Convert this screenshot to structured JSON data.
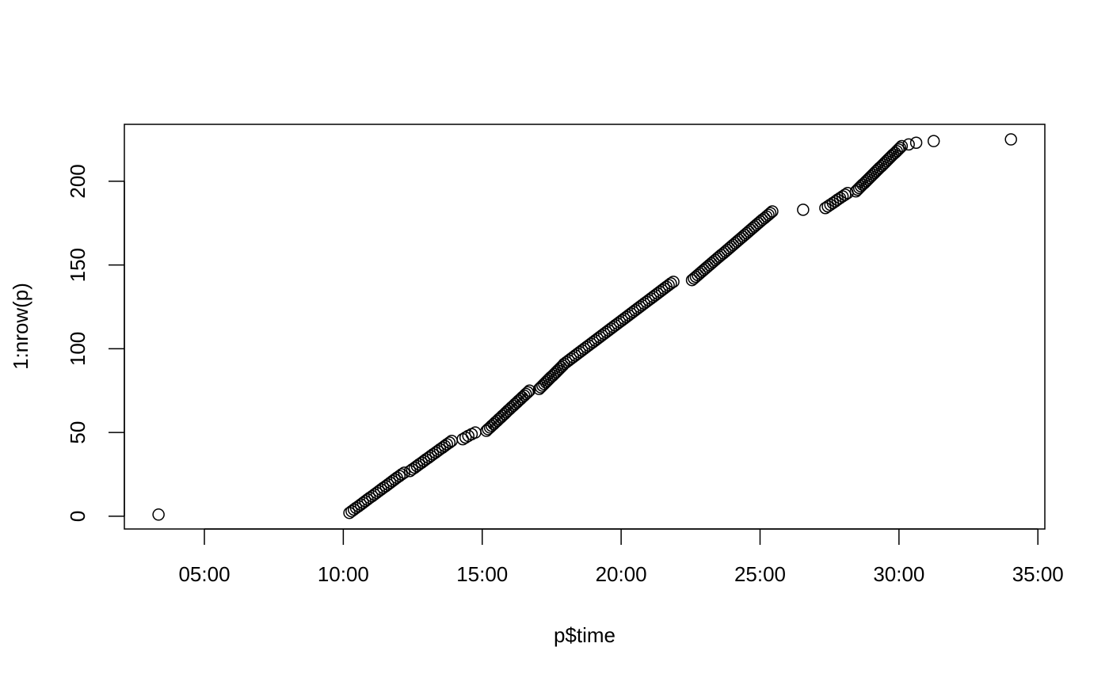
{
  "chart_data": {
    "type": "scatter",
    "x_label": "p$time",
    "y_label": "1:nrow(p)",
    "xlim": [
      2.12,
      35.25
    ],
    "ylim": [
      -7.6,
      234
    ],
    "xticks": [
      {
        "value": 5,
        "label": "05:00"
      },
      {
        "value": 10,
        "label": "10:00"
      },
      {
        "value": 15,
        "label": "15:00"
      },
      {
        "value": 20,
        "label": "20:00"
      },
      {
        "value": 25,
        "label": "25:00"
      },
      {
        "value": 30,
        "label": "30:00"
      },
      {
        "value": 35,
        "label": "35:00"
      }
    ],
    "yticks": [
      0,
      50,
      100,
      150,
      200
    ],
    "color": "#000000",
    "x": [
      3.35,
      10.22,
      10.3,
      10.38,
      10.46,
      10.55,
      10.63,
      10.71,
      10.79,
      10.87,
      10.95,
      11.04,
      11.12,
      11.2,
      11.28,
      11.36,
      11.44,
      11.53,
      11.61,
      11.69,
      11.77,
      11.85,
      11.93,
      12.02,
      12.1,
      12.19,
      12.4,
      12.48,
      12.57,
      12.65,
      12.73,
      12.82,
      12.9,
      12.98,
      13.07,
      13.15,
      13.23,
      13.32,
      13.4,
      13.48,
      13.57,
      13.65,
      13.73,
      13.82,
      13.9,
      14.3,
      14.4,
      14.5,
      14.62,
      14.75,
      15.15,
      15.21,
      15.28,
      15.34,
      15.41,
      15.47,
      15.54,
      15.6,
      15.67,
      15.73,
      15.8,
      15.86,
      15.92,
      15.99,
      16.05,
      16.12,
      16.18,
      16.25,
      16.31,
      16.38,
      16.44,
      16.51,
      16.57,
      16.64,
      16.7,
      17.05,
      17.11,
      17.17,
      17.23,
      17.29,
      17.35,
      17.41,
      17.47,
      17.54,
      17.6,
      17.66,
      17.72,
      17.78,
      17.84,
      17.9,
      17.95,
      18.03,
      18.11,
      18.19,
      18.27,
      18.35,
      18.43,
      18.51,
      18.59,
      18.67,
      18.75,
      18.83,
      18.91,
      18.99,
      19.07,
      19.15,
      19.23,
      19.31,
      19.39,
      19.47,
      19.55,
      19.63,
      19.71,
      19.79,
      19.87,
      19.95,
      20.03,
      20.11,
      20.19,
      20.27,
      20.35,
      20.43,
      20.51,
      20.59,
      20.67,
      20.75,
      20.83,
      20.91,
      20.99,
      21.07,
      21.15,
      21.23,
      21.31,
      21.39,
      21.47,
      21.55,
      21.63,
      21.71,
      21.79,
      21.88,
      22.55,
      22.62,
      22.69,
      22.76,
      22.83,
      22.9,
      22.97,
      23.04,
      23.11,
      23.18,
      23.25,
      23.32,
      23.39,
      23.46,
      23.53,
      23.6,
      23.68,
      23.75,
      23.82,
      23.89,
      23.96,
      24.03,
      24.1,
      24.17,
      24.24,
      24.31,
      24.38,
      24.45,
      24.52,
      24.59,
      24.66,
      24.73,
      24.8,
      24.87,
      24.94,
      25.01,
      25.08,
      25.16,
      25.23,
      25.3,
      25.37,
      25.44,
      26.55,
      27.35,
      27.44,
      27.53,
      27.62,
      27.71,
      27.79,
      27.88,
      27.97,
      28.06,
      28.15,
      28.45,
      28.51,
      28.57,
      28.63,
      28.69,
      28.76,
      28.82,
      28.88,
      28.94,
      29.0,
      29.06,
      29.12,
      29.18,
      29.24,
      29.3,
      29.37,
      29.43,
      29.49,
      29.55,
      29.61,
      29.67,
      29.73,
      29.79,
      29.86,
      29.92,
      29.98,
      30.04,
      30.1,
      30.35,
      30.62,
      31.25,
      34.03
    ],
    "values": [
      1,
      2,
      3,
      4,
      5,
      6,
      7,
      8,
      9,
      10,
      11,
      12,
      13,
      14,
      15,
      16,
      17,
      18,
      19,
      20,
      21,
      22,
      23,
      24,
      25,
      26,
      27,
      28,
      29,
      30,
      31,
      32,
      33,
      34,
      35,
      36,
      37,
      38,
      39,
      40,
      41,
      42,
      43,
      44,
      45,
      46,
      47,
      48,
      49,
      50,
      51,
      52,
      53,
      54,
      55,
      56,
      57,
      58,
      59,
      60,
      61,
      62,
      63,
      64,
      65,
      66,
      67,
      68,
      69,
      70,
      71,
      72,
      73,
      74,
      75,
      76,
      77,
      78,
      79,
      80,
      81,
      82,
      83,
      84,
      85,
      86,
      87,
      88,
      89,
      90,
      91,
      92,
      93,
      94,
      95,
      96,
      97,
      98,
      99,
      100,
      101,
      102,
      103,
      104,
      105,
      106,
      107,
      108,
      109,
      110,
      111,
      112,
      113,
      114,
      115,
      116,
      117,
      118,
      119,
      120,
      121,
      122,
      123,
      124,
      125,
      126,
      127,
      128,
      129,
      130,
      131,
      132,
      133,
      134,
      135,
      136,
      137,
      138,
      139,
      140,
      141,
      142,
      143,
      144,
      145,
      146,
      147,
      148,
      149,
      150,
      151,
      152,
      153,
      154,
      155,
      156,
      157,
      158,
      159,
      160,
      161,
      162,
      163,
      164,
      165,
      166,
      167,
      168,
      169,
      170,
      171,
      172,
      173,
      174,
      175,
      176,
      177,
      178,
      179,
      180,
      181,
      182,
      183,
      184,
      185,
      186,
      187,
      188,
      189,
      190,
      191,
      192,
      193,
      194,
      195,
      196,
      197,
      198,
      199,
      200,
      201,
      202,
      203,
      204,
      205,
      206,
      207,
      208,
      209,
      210,
      211,
      212,
      213,
      214,
      215,
      216,
      217,
      218,
      219,
      220,
      221,
      222,
      223,
      224,
      225
    ]
  }
}
